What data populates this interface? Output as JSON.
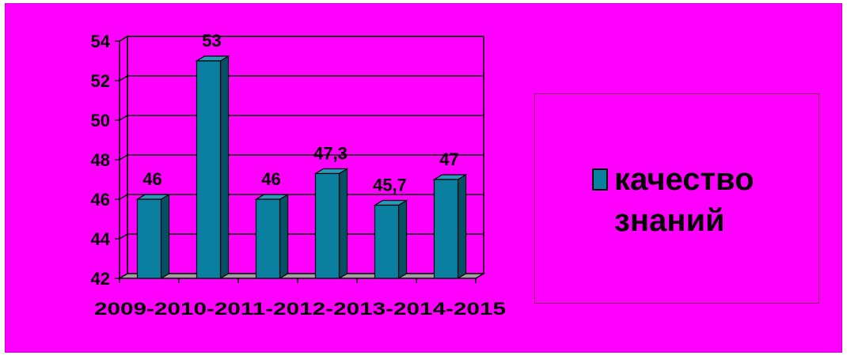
{
  "chart_data": {
    "type": "bar",
    "categories": [
      "2009-2010",
      "2010-2011",
      "2011-2012",
      "2012-2013",
      "2013-2014",
      "2014-2015"
    ],
    "category_axis_text": "2009-2010-2011-2012-2013-2014-2015",
    "series": [
      {
        "name": "качество знаний",
        "values": [
          46,
          53,
          46,
          47.3,
          45.7,
          47
        ],
        "labels": [
          "46",
          "53",
          "46",
          "47,3",
          "45,7",
          "47"
        ]
      }
    ],
    "ylim": [
      42,
      54
    ],
    "yticks": [
      42,
      44,
      46,
      48,
      50,
      52,
      54
    ],
    "grid": true,
    "legend_position": "right",
    "colors": {
      "background": "#ff00ff",
      "bar_front": "#0b7f9f",
      "bar_side": "#065066",
      "bar_top": "#2a9ab8",
      "floor": "#a0a0a0",
      "grid": "#000000"
    }
  }
}
